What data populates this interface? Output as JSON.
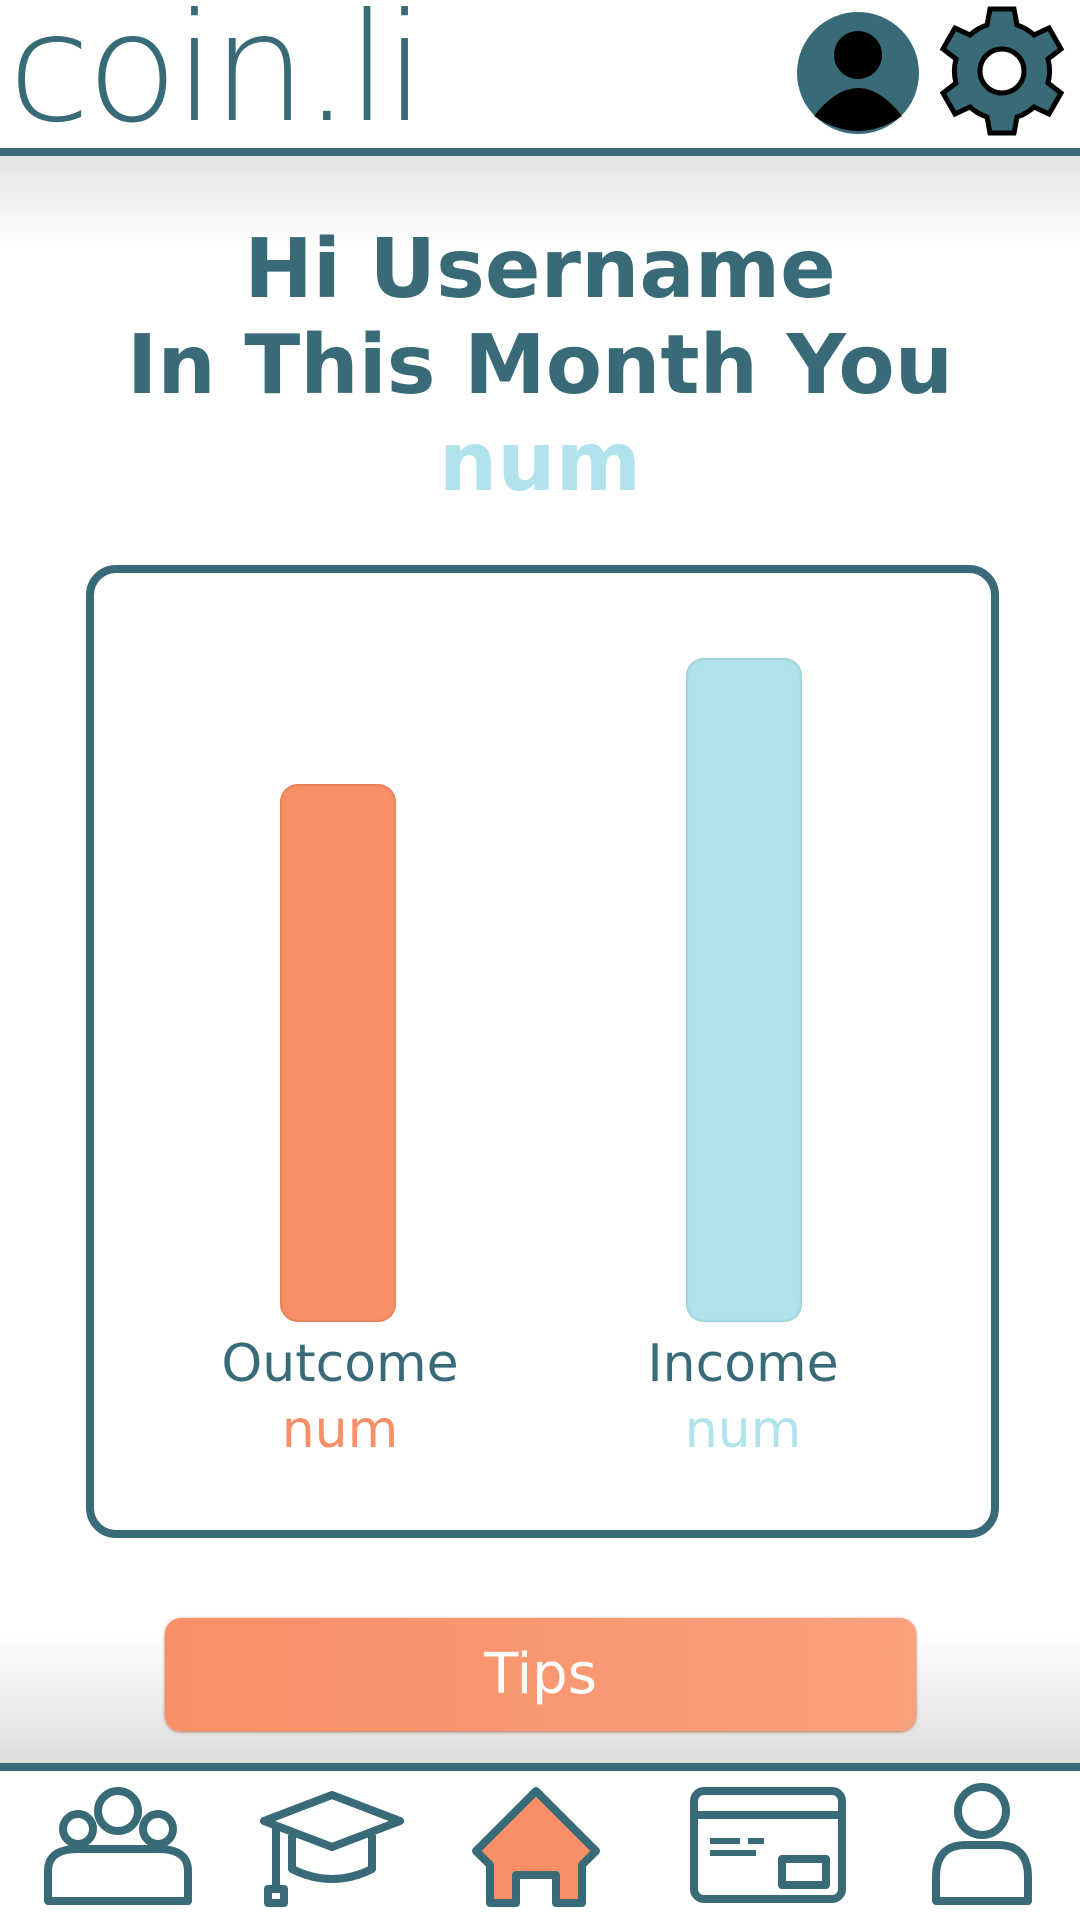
{
  "header": {
    "logo": "coin.li"
  },
  "greeting": {
    "line1": "Hi Username",
    "line2": "In This Month You",
    "amount": "num"
  },
  "summary": {
    "outcome": {
      "label": "Outcome",
      "amount": "num"
    },
    "income": {
      "label": "Income",
      "amount": "num"
    }
  },
  "button": {
    "label": "Tips"
  }
}
